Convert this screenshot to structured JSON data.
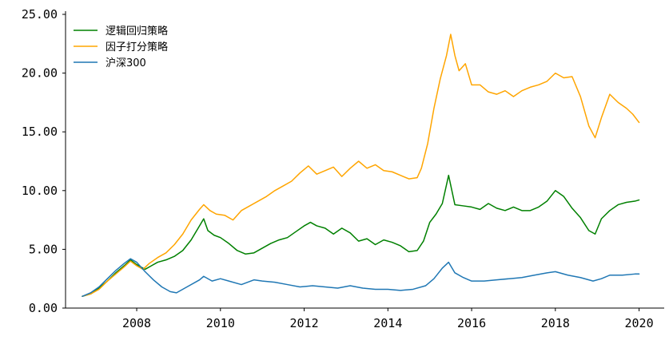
{
  "chart_data": {
    "type": "line",
    "title": "",
    "xlabel": "",
    "ylabel": "",
    "xlim": [
      2006.3,
      2020.6
    ],
    "ylim": [
      0,
      25
    ],
    "x_ticks": [
      2008,
      2010,
      2012,
      2014,
      2016,
      2018,
      2020
    ],
    "x_tick_labels": [
      "2008",
      "2010",
      "2012",
      "2014",
      "2016",
      "2018",
      "2020"
    ],
    "y_ticks": [
      0,
      5,
      10,
      15,
      20,
      25
    ],
    "y_tick_labels": [
      "0.00",
      "5.00",
      "10.00",
      "15.00",
      "20.00",
      "25.00"
    ],
    "grid": false,
    "legend_position": "top-left",
    "series": [
      {
        "name": "逻辑回归策略",
        "color": "#008000",
        "points": [
          [
            2006.7,
            1.0
          ],
          [
            2006.9,
            1.2
          ],
          [
            2007.1,
            1.7
          ],
          [
            2007.3,
            2.3
          ],
          [
            2007.5,
            3.0
          ],
          [
            2007.7,
            3.6
          ],
          [
            2007.85,
            4.1
          ],
          [
            2008.0,
            3.7
          ],
          [
            2008.2,
            3.3
          ],
          [
            2008.35,
            3.6
          ],
          [
            2008.5,
            3.9
          ],
          [
            2008.7,
            4.1
          ],
          [
            2008.9,
            4.4
          ],
          [
            2009.1,
            4.9
          ],
          [
            2009.3,
            5.8
          ],
          [
            2009.5,
            7.0
          ],
          [
            2009.6,
            7.6
          ],
          [
            2009.7,
            6.6
          ],
          [
            2009.85,
            6.2
          ],
          [
            2010.0,
            6.0
          ],
          [
            2010.2,
            5.5
          ],
          [
            2010.4,
            4.9
          ],
          [
            2010.6,
            4.6
          ],
          [
            2010.8,
            4.7
          ],
          [
            2011.0,
            5.1
          ],
          [
            2011.2,
            5.5
          ],
          [
            2011.4,
            5.8
          ],
          [
            2011.6,
            6.0
          ],
          [
            2011.8,
            6.5
          ],
          [
            2012.0,
            7.0
          ],
          [
            2012.15,
            7.3
          ],
          [
            2012.3,
            7.0
          ],
          [
            2012.5,
            6.8
          ],
          [
            2012.7,
            6.3
          ],
          [
            2012.9,
            6.8
          ],
          [
            2013.1,
            6.4
          ],
          [
            2013.3,
            5.7
          ],
          [
            2013.5,
            5.9
          ],
          [
            2013.7,
            5.4
          ],
          [
            2013.9,
            5.8
          ],
          [
            2014.1,
            5.6
          ],
          [
            2014.3,
            5.3
          ],
          [
            2014.5,
            4.8
          ],
          [
            2014.7,
            4.9
          ],
          [
            2014.85,
            5.7
          ],
          [
            2015.0,
            7.3
          ],
          [
            2015.15,
            8.0
          ],
          [
            2015.3,
            8.9
          ],
          [
            2015.45,
            11.3
          ],
          [
            2015.6,
            8.8
          ],
          [
            2015.8,
            8.7
          ],
          [
            2016.0,
            8.6
          ],
          [
            2016.2,
            8.4
          ],
          [
            2016.4,
            8.9
          ],
          [
            2016.6,
            8.5
          ],
          [
            2016.8,
            8.3
          ],
          [
            2017.0,
            8.6
          ],
          [
            2017.2,
            8.3
          ],
          [
            2017.4,
            8.3
          ],
          [
            2017.6,
            8.6
          ],
          [
            2017.8,
            9.1
          ],
          [
            2018.0,
            10.0
          ],
          [
            2018.2,
            9.5
          ],
          [
            2018.4,
            8.5
          ],
          [
            2018.6,
            7.7
          ],
          [
            2018.8,
            6.6
          ],
          [
            2018.95,
            6.3
          ],
          [
            2019.1,
            7.6
          ],
          [
            2019.3,
            8.3
          ],
          [
            2019.5,
            8.8
          ],
          [
            2019.7,
            9.0
          ],
          [
            2019.9,
            9.1
          ],
          [
            2020.0,
            9.2
          ]
        ]
      },
      {
        "name": "因子打分策略",
        "color": "#FFA500",
        "points": [
          [
            2006.7,
            1.0
          ],
          [
            2006.9,
            1.2
          ],
          [
            2007.1,
            1.6
          ],
          [
            2007.3,
            2.3
          ],
          [
            2007.5,
            2.9
          ],
          [
            2007.7,
            3.5
          ],
          [
            2007.85,
            4.0
          ],
          [
            2008.0,
            3.6
          ],
          [
            2008.15,
            3.3
          ],
          [
            2008.3,
            3.8
          ],
          [
            2008.5,
            4.3
          ],
          [
            2008.7,
            4.7
          ],
          [
            2008.9,
            5.4
          ],
          [
            2009.1,
            6.3
          ],
          [
            2009.3,
            7.5
          ],
          [
            2009.5,
            8.4
          ],
          [
            2009.6,
            8.8
          ],
          [
            2009.75,
            8.3
          ],
          [
            2009.9,
            8.0
          ],
          [
            2010.1,
            7.9
          ],
          [
            2010.3,
            7.5
          ],
          [
            2010.5,
            8.3
          ],
          [
            2010.7,
            8.7
          ],
          [
            2010.9,
            9.1
          ],
          [
            2011.1,
            9.5
          ],
          [
            2011.3,
            10.0
          ],
          [
            2011.5,
            10.4
          ],
          [
            2011.7,
            10.8
          ],
          [
            2011.9,
            11.5
          ],
          [
            2012.1,
            12.1
          ],
          [
            2012.3,
            11.4
          ],
          [
            2012.5,
            11.7
          ],
          [
            2012.7,
            12.0
          ],
          [
            2012.9,
            11.2
          ],
          [
            2013.1,
            11.9
          ],
          [
            2013.3,
            12.5
          ],
          [
            2013.5,
            11.9
          ],
          [
            2013.7,
            12.2
          ],
          [
            2013.9,
            11.7
          ],
          [
            2014.1,
            11.6
          ],
          [
            2014.3,
            11.3
          ],
          [
            2014.5,
            11.0
          ],
          [
            2014.7,
            11.1
          ],
          [
            2014.8,
            11.9
          ],
          [
            2014.95,
            14.0
          ],
          [
            2015.1,
            17.0
          ],
          [
            2015.25,
            19.5
          ],
          [
            2015.4,
            21.5
          ],
          [
            2015.5,
            23.3
          ],
          [
            2015.6,
            21.5
          ],
          [
            2015.7,
            20.2
          ],
          [
            2015.85,
            20.8
          ],
          [
            2016.0,
            19.0
          ],
          [
            2016.2,
            19.0
          ],
          [
            2016.4,
            18.4
          ],
          [
            2016.6,
            18.2
          ],
          [
            2016.8,
            18.5
          ],
          [
            2017.0,
            18.0
          ],
          [
            2017.2,
            18.5
          ],
          [
            2017.4,
            18.8
          ],
          [
            2017.6,
            19.0
          ],
          [
            2017.8,
            19.3
          ],
          [
            2018.0,
            20.0
          ],
          [
            2018.2,
            19.6
          ],
          [
            2018.4,
            19.7
          ],
          [
            2018.6,
            18.0
          ],
          [
            2018.8,
            15.5
          ],
          [
            2018.95,
            14.5
          ],
          [
            2019.1,
            16.2
          ],
          [
            2019.3,
            18.2
          ],
          [
            2019.5,
            17.5
          ],
          [
            2019.7,
            17.0
          ],
          [
            2019.85,
            16.5
          ],
          [
            2020.0,
            15.8
          ]
        ]
      },
      {
        "name": "沪深300",
        "color": "#1F77B4",
        "points": [
          [
            2006.7,
            1.0
          ],
          [
            2006.9,
            1.3
          ],
          [
            2007.1,
            1.8
          ],
          [
            2007.3,
            2.5
          ],
          [
            2007.5,
            3.2
          ],
          [
            2007.7,
            3.8
          ],
          [
            2007.85,
            4.2
          ],
          [
            2008.0,
            3.9
          ],
          [
            2008.2,
            3.1
          ],
          [
            2008.4,
            2.4
          ],
          [
            2008.6,
            1.8
          ],
          [
            2008.8,
            1.4
          ],
          [
            2008.95,
            1.3
          ],
          [
            2009.2,
            1.8
          ],
          [
            2009.5,
            2.4
          ],
          [
            2009.6,
            2.7
          ],
          [
            2009.8,
            2.3
          ],
          [
            2010.0,
            2.5
          ],
          [
            2010.2,
            2.3
          ],
          [
            2010.5,
            2.0
          ],
          [
            2010.8,
            2.4
          ],
          [
            2011.0,
            2.3
          ],
          [
            2011.3,
            2.2
          ],
          [
            2011.6,
            2.0
          ],
          [
            2011.9,
            1.8
          ],
          [
            2012.2,
            1.9
          ],
          [
            2012.5,
            1.8
          ],
          [
            2012.8,
            1.7
          ],
          [
            2013.1,
            1.9
          ],
          [
            2013.4,
            1.7
          ],
          [
            2013.7,
            1.6
          ],
          [
            2014.0,
            1.6
          ],
          [
            2014.3,
            1.5
          ],
          [
            2014.6,
            1.6
          ],
          [
            2014.9,
            1.9
          ],
          [
            2015.1,
            2.5
          ],
          [
            2015.3,
            3.4
          ],
          [
            2015.45,
            3.9
          ],
          [
            2015.6,
            3.0
          ],
          [
            2015.8,
            2.6
          ],
          [
            2016.0,
            2.3
          ],
          [
            2016.3,
            2.3
          ],
          [
            2016.6,
            2.4
          ],
          [
            2016.9,
            2.5
          ],
          [
            2017.2,
            2.6
          ],
          [
            2017.5,
            2.8
          ],
          [
            2017.8,
            3.0
          ],
          [
            2018.0,
            3.1
          ],
          [
            2018.3,
            2.8
          ],
          [
            2018.6,
            2.6
          ],
          [
            2018.9,
            2.3
          ],
          [
            2019.1,
            2.5
          ],
          [
            2019.3,
            2.8
          ],
          [
            2019.6,
            2.8
          ],
          [
            2019.9,
            2.9
          ],
          [
            2020.0,
            2.9
          ]
        ]
      }
    ]
  }
}
